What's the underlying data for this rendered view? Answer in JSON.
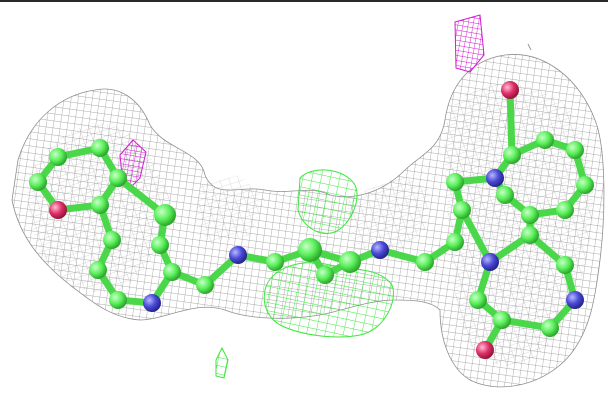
{
  "scene": {
    "colors": {
      "density_mesh": "#8a8a8a",
      "positive_difference_mesh": "#3ee63e",
      "negative_difference_mesh": "#d21ad2",
      "carbon": "#5cf05c",
      "nitrogen": "#4a4ad6",
      "oxygen": "#e0306a",
      "background": "#ffffff"
    },
    "icons": [
      "molecule-ball-and-stick",
      "electron-density-mesh"
    ]
  }
}
